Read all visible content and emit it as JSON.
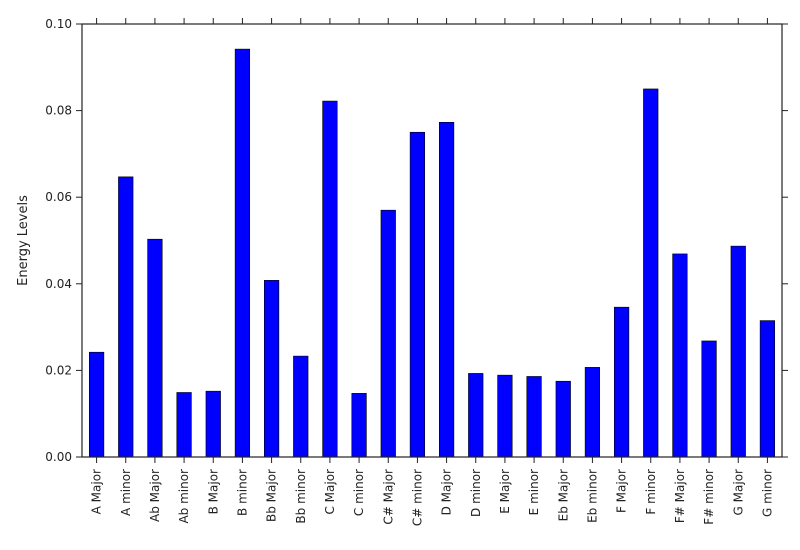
{
  "chart_data": {
    "type": "bar",
    "title": "",
    "xlabel": "",
    "ylabel": "Energy Levels",
    "ylim": [
      0,
      0.1
    ],
    "yticks": [
      "0.00",
      "0.02",
      "0.04",
      "0.06",
      "0.08",
      "0.10"
    ],
    "grid": false,
    "legend": "none",
    "bar_color": "#0000ff",
    "categories": [
      "A Major",
      "A minor",
      "Ab Major",
      "Ab minor",
      "B Major",
      "B minor",
      "Bb Major",
      "Bb minor",
      "C Major",
      "C minor",
      "C# Major",
      "C# minor",
      "D Major",
      "D minor",
      "E Major",
      "E minor",
      "Eb Major",
      "Eb minor",
      "F Major",
      "F minor",
      "F# Major",
      "F# minor",
      "G Major",
      "G minor"
    ],
    "values": [
      0.0242,
      0.0647,
      0.0503,
      0.0149,
      0.0152,
      0.0942,
      0.0408,
      0.0233,
      0.0822,
      0.0147,
      0.057,
      0.075,
      0.0773,
      0.0193,
      0.0189,
      0.0186,
      0.0175,
      0.0207,
      0.0346,
      0.085,
      0.0469,
      0.0268,
      0.0487,
      0.0315
    ]
  }
}
